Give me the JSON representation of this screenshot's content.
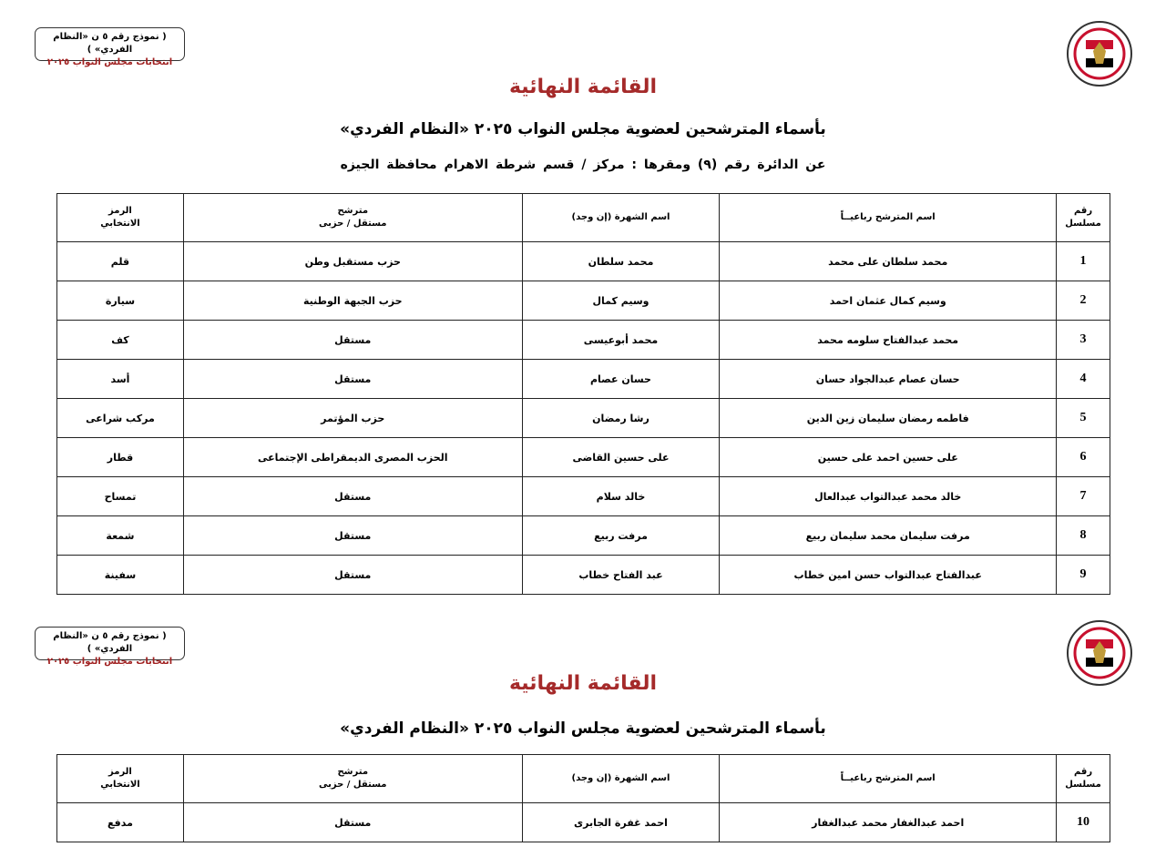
{
  "form_box": {
    "line1": "( نموذج رقم ٥ ن «النظام الفردي» )",
    "line2": "انتخابات مجلس النواب ٢٠٢٥"
  },
  "logo": {
    "text": "National Election Authority Egypt",
    "colors": [
      "#c8102e",
      "#ffffff",
      "#000000",
      "#c09b3a"
    ]
  },
  "title": "القائمة النهائية",
  "subtitle": "بأسماء المترشحين لعضوية مجلس النواب ٢٠٢٥ «النظام الفردي»",
  "district_line": "عن الدائرة رقم  (٩)    ومقرها : مركز / قسم شرطة الاهرام   محافظة الجيزه",
  "columns": {
    "serial_1": "رقم",
    "serial_2": "مسلسل",
    "name": "اسم المترشح رباعيــاً",
    "nickname": "اسم الشهرة (إن وجد)",
    "type_1": "مترشح",
    "type_2": "مستقل / حزبى",
    "symbol_1": "الرمز",
    "symbol_2": "الانتخابي"
  },
  "rows": [
    {
      "n": "1",
      "name": "محمد سلطان على محمد",
      "nick": "محمد سلطان",
      "party": "حزب مستقبل وطن",
      "symbol": "قلم"
    },
    {
      "n": "2",
      "name": "وسيم كمال عثمان احمد",
      "nick": "وسيم كمال",
      "party": "حزب الجبهة الوطنية",
      "symbol": "سيارة"
    },
    {
      "n": "3",
      "name": "محمد عبدالفتاح سلومه محمد",
      "nick": "محمد أبوعيسى",
      "party": "مستقل",
      "symbol": "كف"
    },
    {
      "n": "4",
      "name": "حسان عصام عبدالجواد حسان",
      "nick": "حسان عصام",
      "party": "مستقل",
      "symbol": "أسد"
    },
    {
      "n": "5",
      "name": "فاطمه رمضان سليمان زين الدين",
      "nick": "رشا رمضان",
      "party": "حزب المؤتمر",
      "symbol": "مركب شراعى"
    },
    {
      "n": "6",
      "name": "على حسين احمد على حسين",
      "nick": "على حسين القاضى",
      "party": "الحزب المصرى الديمقراطى الإجتماعى",
      "symbol": "قطار"
    },
    {
      "n": "7",
      "name": "خالد محمد عبدالتواب عبدالعال",
      "nick": "خالد سلام",
      "party": "مستقل",
      "symbol": "تمساح"
    },
    {
      "n": "8",
      "name": "مرفت سليمان محمد سليمان ربيع",
      "nick": "مرفت ربيع",
      "party": "مستقل",
      "symbol": "شمعة"
    },
    {
      "n": "9",
      "name": "عبدالفتاح عبدالتواب حسن امين خطاب",
      "nick": "عبد الفتاح خطاب",
      "party": "مستقل",
      "symbol": "سفينة"
    }
  ],
  "rows_page2": [
    {
      "n": "10",
      "name": "احمد عبدالغفار محمد عبدالغفار",
      "nick": "احمد غفرة الجابرى",
      "party": "مستقل",
      "symbol": "مدفع"
    }
  ]
}
